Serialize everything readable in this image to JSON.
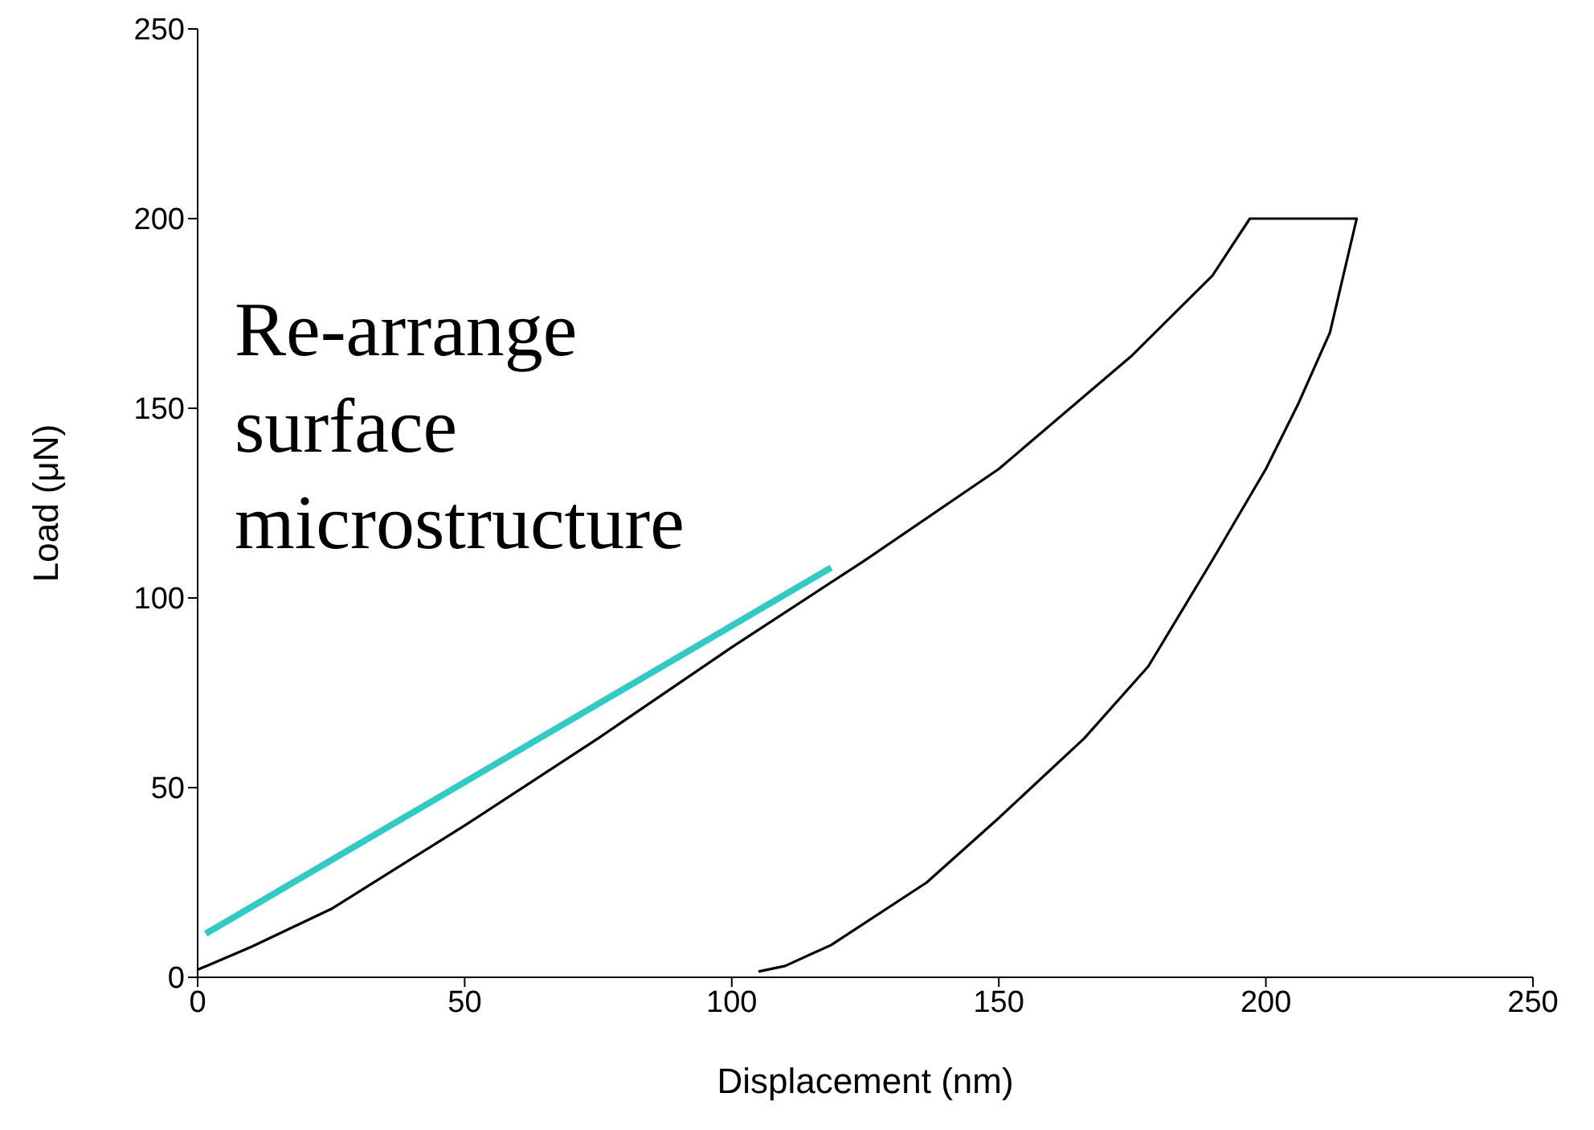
{
  "chart_data": {
    "type": "line",
    "xlabel": "Displacement (nm)",
    "ylabel": "Load (μN)",
    "xlim": [
      0,
      250
    ],
    "xticks": [
      0,
      50,
      100,
      150,
      200,
      250
    ],
    "ylim": [
      0,
      250
    ],
    "yticks": [
      0,
      50,
      100,
      150,
      200,
      250
    ],
    "marker": "none",
    "line_style": "solid",
    "series": [
      {
        "color": "#000000",
        "x": [
          0,
          10,
          25,
          50,
          75,
          100,
          125,
          150,
          175,
          190,
          197,
          205,
          217,
          212,
          206,
          200,
          190,
          178,
          166,
          150,
          136.5,
          118.6,
          110,
          105
        ],
        "values": [
          2,
          8,
          18,
          40,
          63,
          87,
          110,
          134,
          164,
          185,
          200,
          200,
          200,
          170,
          151,
          134,
          110,
          82,
          63,
          42,
          25,
          8.5,
          3,
          1.5
        ]
      },
      {
        "color": "#33c9c4",
        "x": [
          1.5,
          118.6
        ],
        "values": [
          11.5,
          108
        ]
      }
    ],
    "annotations": [
      "Re-arrange surface microstructure"
    ]
  }
}
